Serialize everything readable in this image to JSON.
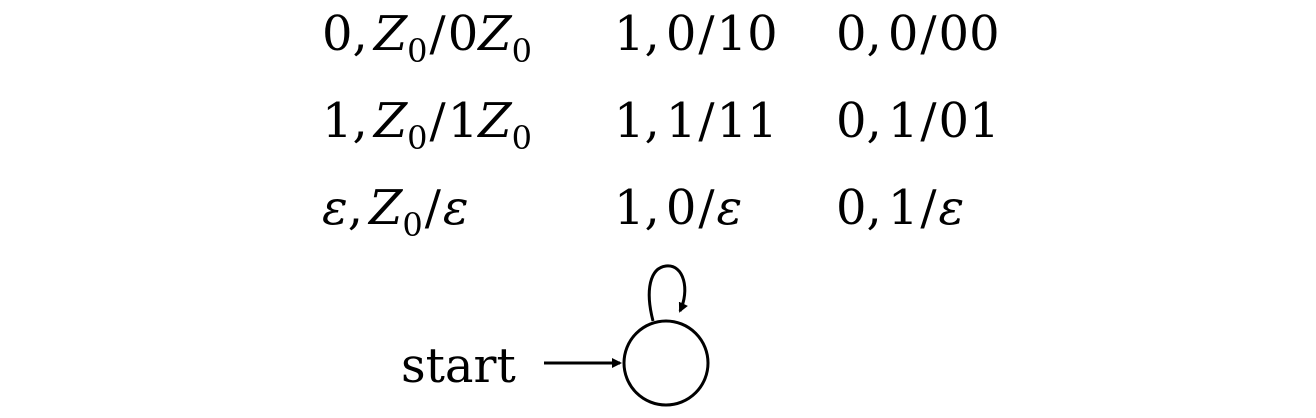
{
  "transition_table": {
    "rows": [
      [
        {
          "input": "0",
          "stack_top": "Z",
          "stack_top_sub": "0",
          "push": "0",
          "push_var": "Z",
          "push_var_sub": "0"
        },
        {
          "input": "1",
          "stack_top": "0",
          "push": "10"
        },
        {
          "input": "0",
          "stack_top": "0",
          "push": "00"
        }
      ],
      [
        {
          "input": "1",
          "stack_top": "Z",
          "stack_top_sub": "0",
          "push": "1",
          "push_var": "Z",
          "push_var_sub": "0"
        },
        {
          "input": "1",
          "stack_top": "1",
          "push": "11"
        },
        {
          "input": "0",
          "stack_top": "1",
          "push": "01"
        }
      ],
      [
        {
          "input": "ε",
          "stack_top": "Z",
          "stack_top_sub": "0",
          "push": "ε"
        },
        {
          "input": "1",
          "stack_top": "0",
          "push": "ε"
        },
        {
          "input": "0",
          "stack_top": "1",
          "push": "ε"
        }
      ]
    ],
    "comma": ",",
    "slash": "/"
  },
  "start_label": "start"
}
